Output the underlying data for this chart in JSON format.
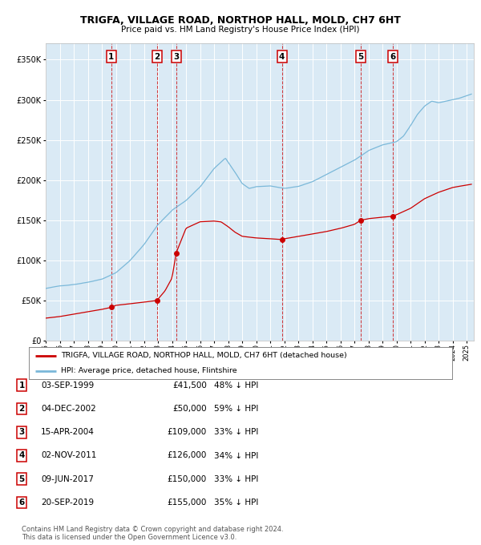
{
  "title": "TRIGFA, VILLAGE ROAD, NORTHOP HALL, MOLD, CH7 6HT",
  "subtitle": "Price paid vs. HM Land Registry's House Price Index (HPI)",
  "legend_line1": "TRIGFA, VILLAGE ROAD, NORTHOP HALL, MOLD, CH7 6HT (detached house)",
  "legend_line2": "HPI: Average price, detached house, Flintshire",
  "footer1": "Contains HM Land Registry data © Crown copyright and database right 2024.",
  "footer2": "This data is licensed under the Open Government Licence v3.0.",
  "sales": [
    {
      "num": 1,
      "date_label": "03-SEP-1999",
      "price": 41500,
      "pct": "48% ↓ HPI",
      "date_x": 1999.67
    },
    {
      "num": 2,
      "date_label": "04-DEC-2002",
      "price": 50000,
      "pct": "59% ↓ HPI",
      "date_x": 2002.92
    },
    {
      "num": 3,
      "date_label": "15-APR-2004",
      "price": 109000,
      "pct": "33% ↓ HPI",
      "date_x": 2004.29
    },
    {
      "num": 4,
      "date_label": "02-NOV-2011",
      "price": 126000,
      "pct": "34% ↓ HPI",
      "date_x": 2011.83
    },
    {
      "num": 5,
      "date_label": "09-JUN-2017",
      "price": 150000,
      "pct": "33% ↓ HPI",
      "date_x": 2017.44
    },
    {
      "num": 6,
      "date_label": "20-SEP-2019",
      "price": 155000,
      "pct": "35% ↓ HPI",
      "date_x": 2019.72
    }
  ],
  "hpi_color": "#7ab8d9",
  "price_color": "#cc0000",
  "bg_color": "#daeaf5",
  "ylim": [
    0,
    370000
  ],
  "xlim": [
    1995.0,
    2025.5
  ],
  "yticks": [
    0,
    50000,
    100000,
    150000,
    200000,
    250000,
    300000,
    350000
  ],
  "hpi_anchors": [
    [
      1995.0,
      65000
    ],
    [
      1996.0,
      68000
    ],
    [
      1997.0,
      70000
    ],
    [
      1998.0,
      73000
    ],
    [
      1999.0,
      77000
    ],
    [
      2000.0,
      85000
    ],
    [
      2001.0,
      100000
    ],
    [
      2002.0,
      120000
    ],
    [
      2003.0,
      145000
    ],
    [
      2004.0,
      163000
    ],
    [
      2005.0,
      175000
    ],
    [
      2006.0,
      192000
    ],
    [
      2007.0,
      215000
    ],
    [
      2007.8,
      228000
    ],
    [
      2008.5,
      210000
    ],
    [
      2009.0,
      196000
    ],
    [
      2009.5,
      190000
    ],
    [
      2010.0,
      192000
    ],
    [
      2011.0,
      193000
    ],
    [
      2012.0,
      190000
    ],
    [
      2013.0,
      192000
    ],
    [
      2014.0,
      198000
    ],
    [
      2015.0,
      207000
    ],
    [
      2016.0,
      216000
    ],
    [
      2017.0,
      225000
    ],
    [
      2018.0,
      237000
    ],
    [
      2019.0,
      244000
    ],
    [
      2020.0,
      248000
    ],
    [
      2020.5,
      255000
    ],
    [
      2021.0,
      268000
    ],
    [
      2021.5,
      282000
    ],
    [
      2022.0,
      292000
    ],
    [
      2022.5,
      298000
    ],
    [
      2023.0,
      296000
    ],
    [
      2023.5,
      298000
    ],
    [
      2024.0,
      300000
    ],
    [
      2024.5,
      302000
    ],
    [
      2025.0,
      305000
    ],
    [
      2025.33,
      307000
    ]
  ],
  "price_anchors": [
    [
      1995.0,
      28000
    ],
    [
      1996.0,
      30000
    ],
    [
      1997.0,
      33000
    ],
    [
      1998.0,
      36000
    ],
    [
      1999.0,
      39000
    ],
    [
      1999.67,
      41500
    ],
    [
      2000.0,
      44000
    ],
    [
      2001.0,
      46000
    ],
    [
      2002.0,
      48000
    ],
    [
      2002.92,
      50000
    ],
    [
      2003.5,
      62000
    ],
    [
      2004.0,
      78000
    ],
    [
      2004.29,
      109000
    ],
    [
      2005.0,
      140000
    ],
    [
      2006.0,
      148000
    ],
    [
      2007.0,
      149000
    ],
    [
      2007.5,
      148000
    ],
    [
      2008.0,
      142000
    ],
    [
      2008.5,
      135000
    ],
    [
      2009.0,
      130000
    ],
    [
      2010.0,
      128000
    ],
    [
      2011.0,
      127000
    ],
    [
      2011.83,
      126000
    ],
    [
      2012.0,
      127000
    ],
    [
      2013.0,
      130000
    ],
    [
      2014.0,
      133000
    ],
    [
      2015.0,
      136000
    ],
    [
      2016.0,
      140000
    ],
    [
      2017.0,
      145000
    ],
    [
      2017.44,
      150000
    ],
    [
      2018.0,
      152000
    ],
    [
      2019.0,
      154000
    ],
    [
      2019.72,
      155000
    ],
    [
      2020.0,
      157000
    ],
    [
      2021.0,
      165000
    ],
    [
      2022.0,
      177000
    ],
    [
      2023.0,
      185000
    ],
    [
      2024.0,
      191000
    ],
    [
      2025.0,
      194000
    ],
    [
      2025.33,
      195000
    ]
  ]
}
